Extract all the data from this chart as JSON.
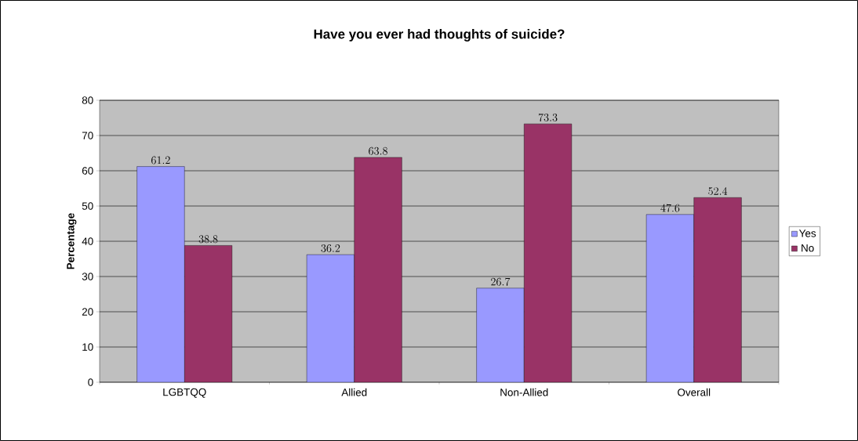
{
  "chart_data": {
    "type": "bar",
    "title": "Have you ever had thoughts of suicide?",
    "ylabel": "Percentage",
    "categories": [
      "LGBTQQ",
      "Allied",
      "Non-Allied",
      "Overall"
    ],
    "series": [
      {
        "name": "Yes",
        "color": "#9999ff",
        "values": [
          61.2,
          36.2,
          26.7,
          47.6
        ]
      },
      {
        "name": "No",
        "color": "#993366",
        "values": [
          38.8,
          63.8,
          73.3,
          52.4
        ]
      }
    ],
    "ylim": [
      0,
      80
    ],
    "yticks": [
      0,
      10,
      20,
      30,
      40,
      50,
      60,
      70,
      80
    ],
    "grid": "y",
    "legend": "right",
    "data_labels": true
  }
}
